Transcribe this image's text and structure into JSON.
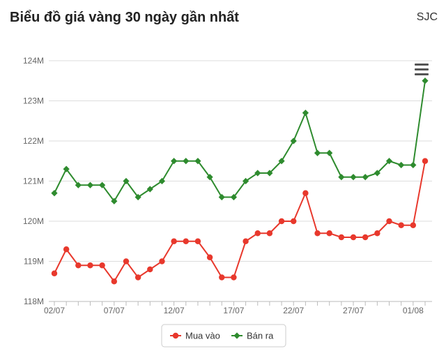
{
  "header": {
    "title": "Biểu đồ giá vàng 30 ngày gần nhất",
    "brand": "SJC"
  },
  "colors": {
    "buy": "#e8382c",
    "sell": "#2e8b2e",
    "grid": "#dddddd",
    "axis": "#bbbbbb"
  },
  "icons": {
    "menu": "hamburger-menu-icon"
  },
  "chart_data": {
    "type": "line",
    "title": "Biểu đồ giá vàng 30 ngày gần nhất",
    "xlabel": "",
    "ylabel": "",
    "ylim": [
      118,
      124
    ],
    "y_unit": "M",
    "y_ticks": [
      118,
      119,
      120,
      121,
      122,
      123,
      124
    ],
    "y_tick_labels": [
      "118M",
      "119M",
      "120M",
      "121M",
      "122M",
      "123M",
      "124M"
    ],
    "x_count": 32,
    "x_tick_positions": [
      0,
      5,
      10,
      15,
      20,
      25,
      30
    ],
    "x_tick_labels": [
      "02/07",
      "07/07",
      "12/07",
      "17/07",
      "22/07",
      "27/07",
      "01/08"
    ],
    "grid": true,
    "legend_position": "bottom-center",
    "series": [
      {
        "name": "Mua vào",
        "marker": "circle",
        "values": [
          118.7,
          119.3,
          118.9,
          118.9,
          118.9,
          118.5,
          119.0,
          118.6,
          118.8,
          119.0,
          119.5,
          119.5,
          119.5,
          119.1,
          118.6,
          118.6,
          119.5,
          119.7,
          119.7,
          120.0,
          120.0,
          120.7,
          119.7,
          119.7,
          119.6,
          119.6,
          119.6,
          119.7,
          120.0,
          119.9,
          119.9,
          121.5
        ]
      },
      {
        "name": "Bán ra",
        "marker": "diamond",
        "values": [
          120.7,
          121.3,
          120.9,
          120.9,
          120.9,
          120.5,
          121.0,
          120.6,
          120.8,
          121.0,
          121.5,
          121.5,
          121.5,
          121.1,
          120.6,
          120.6,
          121.0,
          121.2,
          121.2,
          121.5,
          122.0,
          122.7,
          121.7,
          121.7,
          121.1,
          121.1,
          121.1,
          121.2,
          121.5,
          121.4,
          121.4,
          123.5
        ]
      }
    ]
  }
}
